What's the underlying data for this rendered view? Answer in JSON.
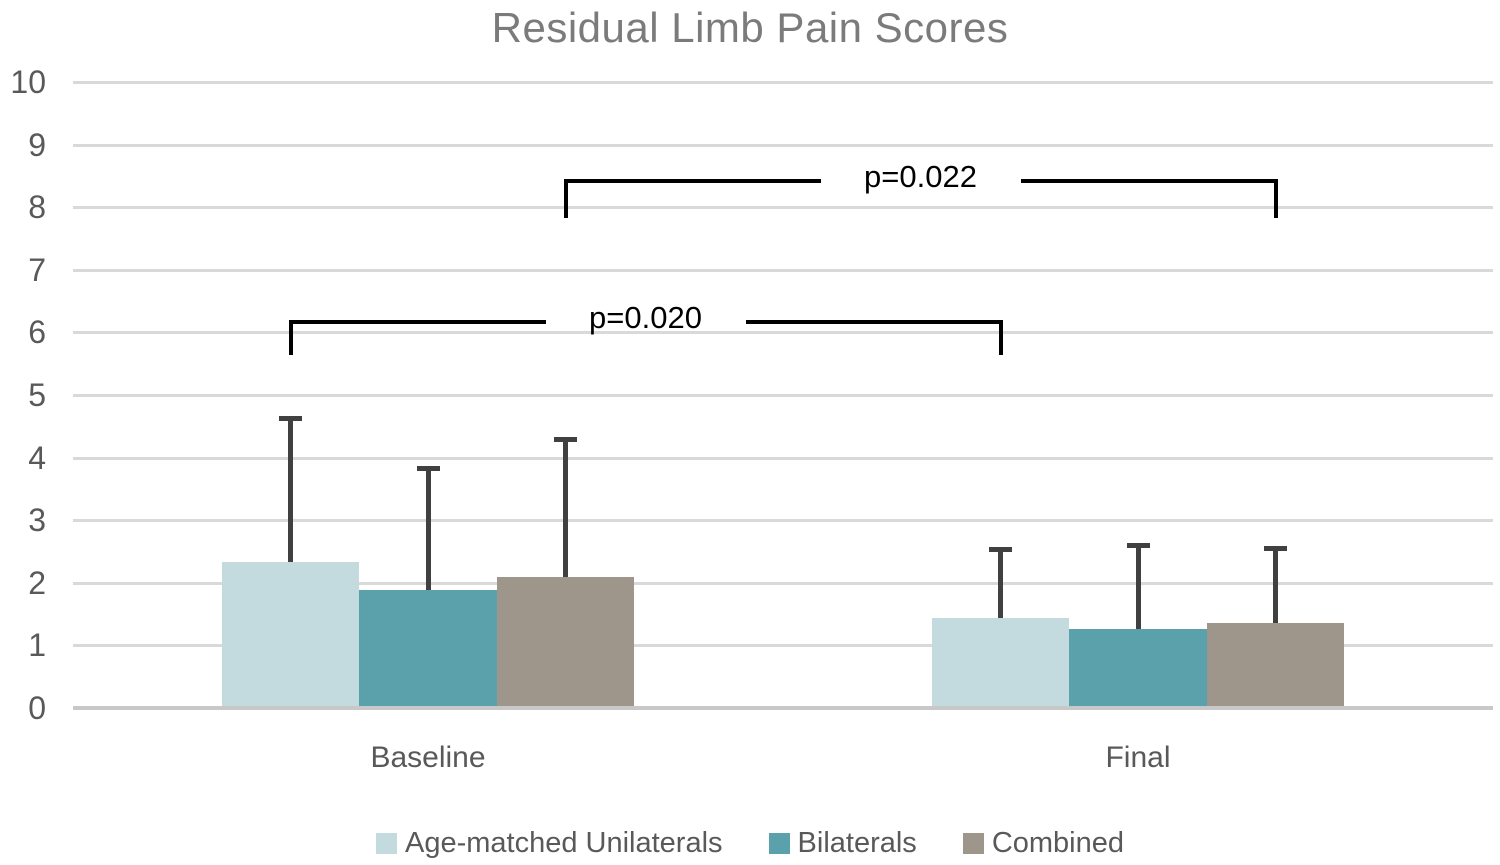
{
  "chart_data": {
    "type": "bar",
    "title": "Residual Limb Pain Scores",
    "categories": [
      "Baseline",
      "Final"
    ],
    "series": [
      {
        "name": "Age-matched Unilaterals",
        "color": "#c3dade",
        "values": [
          2.33,
          1.44
        ],
        "errors_up": [
          2.3,
          1.1
        ]
      },
      {
        "name": "Bilaterals",
        "color": "#5ba1ac",
        "values": [
          1.88,
          1.26
        ],
        "errors_up": [
          1.95,
          1.34
        ]
      },
      {
        "name": "Combined",
        "color": "#9e968b",
        "values": [
          2.1,
          1.35
        ],
        "errors_up": [
          2.2,
          1.2
        ]
      }
    ],
    "ylim": [
      0,
      10
    ],
    "yticks": [
      0,
      1,
      2,
      3,
      4,
      5,
      6,
      7,
      8,
      9,
      10
    ],
    "grid": true,
    "legend_position": "bottom",
    "annotations": [
      {
        "label": "p=0.020",
        "from": {
          "category": 0,
          "series": 0
        },
        "to": {
          "category": 1,
          "series": 0
        },
        "y": 6.17,
        "drop": 0.53
      },
      {
        "label": "p=0.022",
        "from": {
          "category": 0,
          "series": 2
        },
        "to": {
          "category": 1,
          "series": 2
        },
        "y": 8.42,
        "drop": 0.59
      }
    ],
    "colors": {
      "gridline": "#d9d9d9",
      "axis_line": "#c8c8c8",
      "error_bar": "#404040",
      "bracket": "#000000",
      "title_text": "#7b7b7b",
      "axis_text": "#595959",
      "annotation_text": "#000000"
    }
  }
}
